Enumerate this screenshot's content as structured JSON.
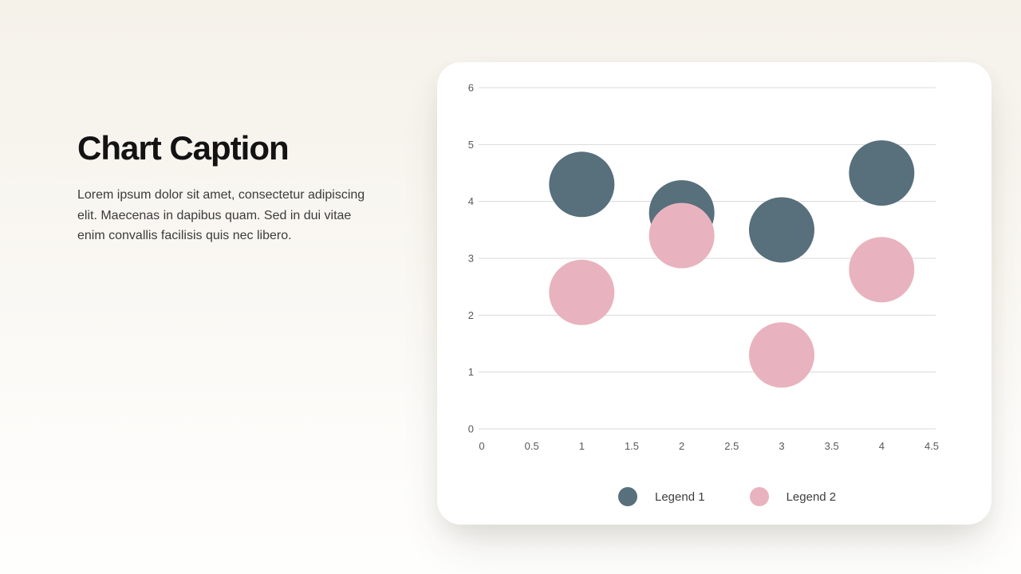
{
  "caption": {
    "title": "Chart Caption",
    "body": "Lorem ipsum dolor sit amet, consectetur adipiscing elit. Maecenas in dapibus quam. Sed in dui vitae enim convallis facilisis quis nec libero."
  },
  "chart_data": {
    "type": "scatter",
    "subtype": "bubble",
    "title": "",
    "xlabel": "",
    "ylabel": "",
    "xlim": [
      0,
      4.5
    ],
    "ylim": [
      0,
      6
    ],
    "x_ticks": [
      "0",
      "0.5",
      "1",
      "1.5",
      "2",
      "2.5",
      "3",
      "3.5",
      "4",
      "4.5"
    ],
    "y_ticks": [
      "0",
      "1",
      "2",
      "3",
      "4",
      "5",
      "6"
    ],
    "grid": "horizontal",
    "legend_position": "bottom",
    "bubble_radius": 41,
    "series": [
      {
        "name": "Legend 1",
        "color": "#586F7C",
        "points": [
          {
            "x": 1,
            "y": 4.3
          },
          {
            "x": 2,
            "y": 3.8
          },
          {
            "x": 3,
            "y": 3.5
          },
          {
            "x": 4,
            "y": 4.5
          }
        ]
      },
      {
        "name": "Legend 2",
        "color": "#E8B3BE",
        "points": [
          {
            "x": 1,
            "y": 2.4
          },
          {
            "x": 2,
            "y": 3.4
          },
          {
            "x": 3,
            "y": 1.3
          },
          {
            "x": 4,
            "y": 2.8
          }
        ]
      }
    ],
    "colors": {
      "gridline": "#D9D9D9",
      "axis_label": "#595959"
    }
  }
}
